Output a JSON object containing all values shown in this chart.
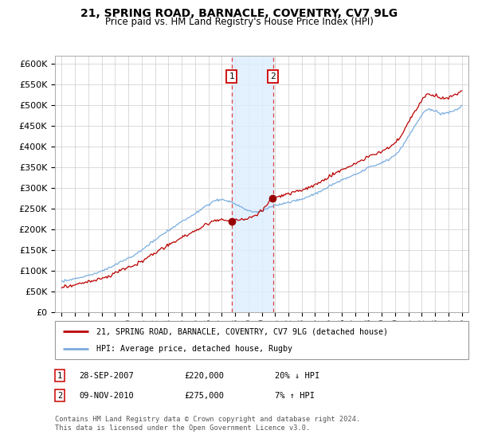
{
  "title": "21, SPRING ROAD, BARNACLE, COVENTRY, CV7 9LG",
  "subtitle": "Price paid vs. HM Land Registry's House Price Index (HPI)",
  "ylim": [
    0,
    620000
  ],
  "yticks": [
    0,
    50000,
    100000,
    150000,
    200000,
    250000,
    300000,
    350000,
    400000,
    450000,
    500000,
    550000,
    600000
  ],
  "xlim": [
    1994.5,
    2025.5
  ],
  "legend_label_red": "21, SPRING ROAD, BARNACLE, COVENTRY, CV7 9LG (detached house)",
  "legend_label_blue": "HPI: Average price, detached house, Rugby",
  "sale1_date": "28-SEP-2007",
  "sale1_price": "£220,000",
  "sale1_hpi": "20% ↓ HPI",
  "sale1_year": 2007.75,
  "sale1_value": 220000,
  "sale2_date": "09-NOV-2010",
  "sale2_price": "£275,000",
  "sale2_hpi": "7% ↑ HPI",
  "sale2_year": 2010.85,
  "sale2_value": 275000,
  "footnote1": "Contains HM Land Registry data © Crown copyright and database right 2024.",
  "footnote2": "This data is licensed under the Open Government Licence v3.0.",
  "background_color": "#ffffff",
  "grid_color": "#cccccc",
  "red_color": "#bb0000",
  "blue_color": "#7aade0",
  "shade_color": "#ddeeff",
  "marker_color": "#990000"
}
